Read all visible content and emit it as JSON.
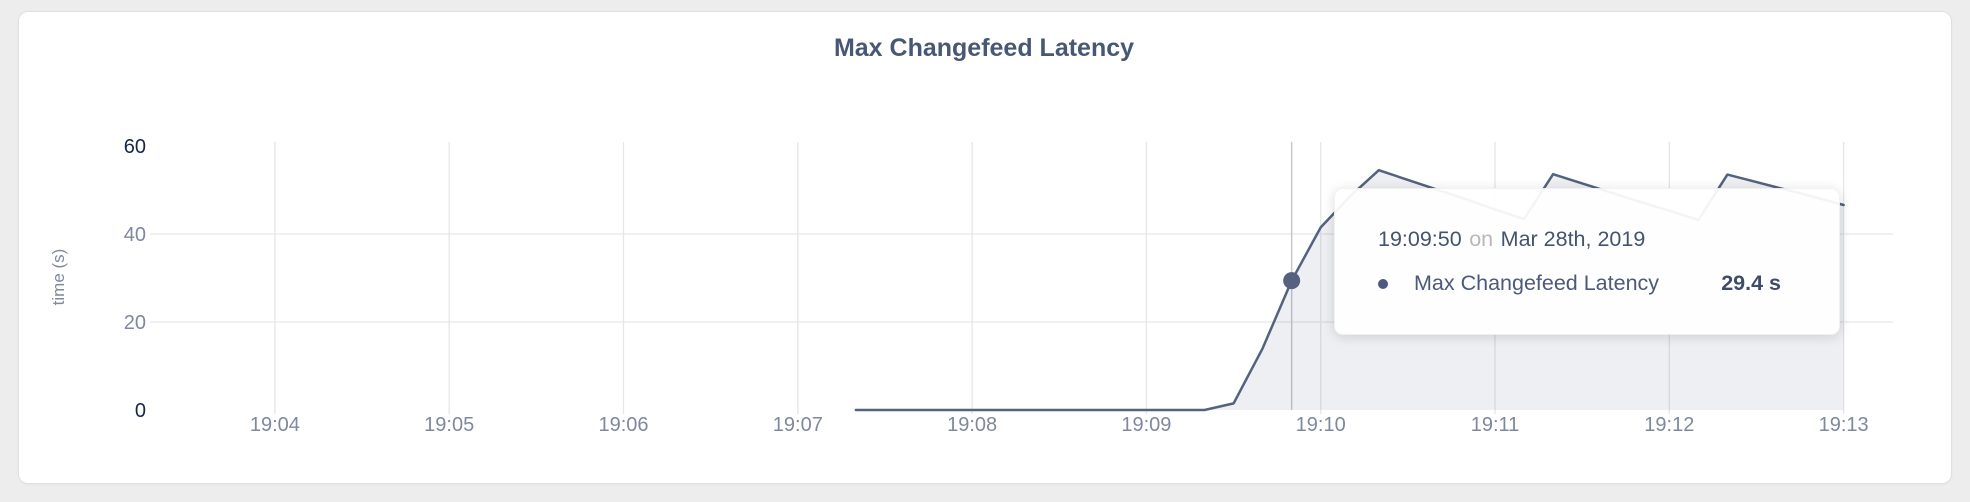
{
  "card": {
    "title": "Max Changefeed Latency"
  },
  "chart_data": {
    "type": "area",
    "title": "Max Changefeed Latency",
    "xlabel": "",
    "ylabel": "time (s)",
    "ylim": [
      0,
      60
    ],
    "y_ticks": [
      "0",
      "20",
      "40",
      "60"
    ],
    "x_ticks": [
      "19:04",
      "19:05",
      "19:06",
      "19:07",
      "19:08",
      "19:09",
      "19:10",
      "19:11",
      "19:12",
      "19:13"
    ],
    "x_domain": [
      "19:03:17",
      "19:13:17"
    ],
    "grid": "on",
    "legend_position": "none",
    "series": [
      {
        "name": "Max Changefeed Latency",
        "unit": "s",
        "points": [
          [
            "19:07:20",
            0
          ],
          [
            "19:07:30",
            0
          ],
          [
            "19:07:40",
            0
          ],
          [
            "19:07:50",
            0
          ],
          [
            "19:08:00",
            0
          ],
          [
            "19:08:10",
            0
          ],
          [
            "19:08:20",
            0
          ],
          [
            "19:08:30",
            0
          ],
          [
            "19:08:40",
            0
          ],
          [
            "19:08:50",
            0
          ],
          [
            "19:09:00",
            0
          ],
          [
            "19:09:10",
            0
          ],
          [
            "19:09:20",
            0
          ],
          [
            "19:09:30",
            1.5
          ],
          [
            "19:09:40",
            14
          ],
          [
            "19:09:50",
            29.4
          ],
          [
            "19:10:00",
            41.5
          ],
          [
            "19:10:10",
            48.5
          ],
          [
            "19:10:20",
            54.5
          ],
          [
            "19:10:30",
            52.3
          ],
          [
            "19:10:40",
            50.1
          ],
          [
            "19:10:50",
            47.9
          ],
          [
            "19:11:00",
            45.6
          ],
          [
            "19:11:10",
            43.4
          ],
          [
            "19:11:20",
            53.6
          ],
          [
            "19:11:30",
            51.5
          ],
          [
            "19:11:40",
            49.4
          ],
          [
            "19:11:50",
            47.3
          ],
          [
            "19:12:00",
            45.3
          ],
          [
            "19:12:10",
            43.2
          ],
          [
            "19:12:20",
            53.5
          ],
          [
            "19:12:30",
            51.8
          ],
          [
            "19:12:40",
            50.1
          ],
          [
            "19:12:50",
            48.4
          ],
          [
            "19:13:00",
            46.6
          ]
        ]
      }
    ],
    "hover_point": {
      "time": "19:09:50",
      "value": 29.4
    }
  },
  "tooltip": {
    "time": "19:09:50",
    "preposition": "on",
    "date": "Mar 28th, 2019",
    "series_label": "Max Changefeed Latency",
    "value": "29.4 s"
  },
  "colors": {
    "line": "#54627f",
    "area_fill": "rgba(84,98,127,0.10)",
    "gridline": "#e5e6ea",
    "crosshair": "#c6c8cd",
    "axis_text": "#7e889e",
    "axis_text_extreme": "#152749",
    "title": "#475877"
  }
}
